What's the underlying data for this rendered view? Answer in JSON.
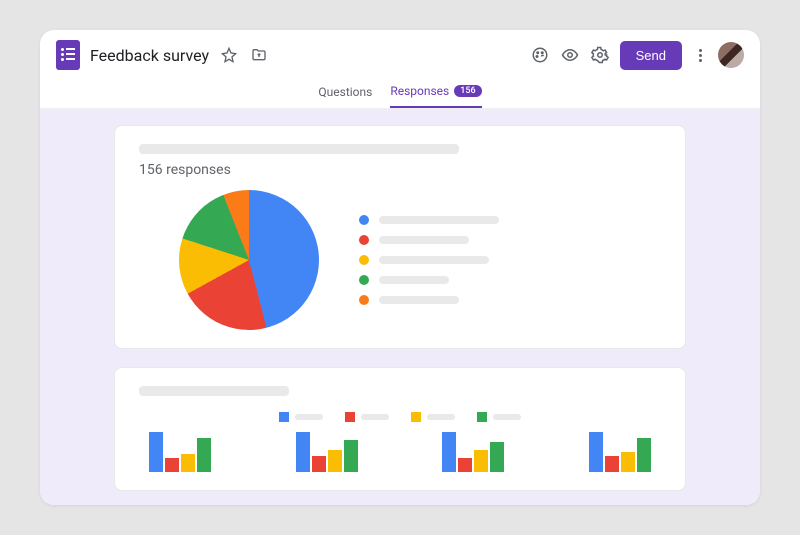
{
  "header": {
    "title": "Feedback survey",
    "send_label": "Send"
  },
  "tabs": {
    "questions": "Questions",
    "responses": "Responses",
    "count_badge": "156"
  },
  "responses": {
    "subtitle": "156 responses",
    "pie": {
      "type": "pie",
      "slices": [
        {
          "color": "#4285f4",
          "pct": 46
        },
        {
          "color": "#ea4335",
          "pct": 21
        },
        {
          "color": "#fbbc04",
          "pct": 13
        },
        {
          "color": "#34a853",
          "pct": 14
        },
        {
          "color": "#fa7b17",
          "pct": 6
        }
      ],
      "legend_bar_widths": [
        120,
        90,
        110,
        70,
        80
      ]
    },
    "bars": {
      "type": "bar",
      "colors": [
        "#4285f4",
        "#ea4335",
        "#fbbc04",
        "#34a853"
      ],
      "legend_bar_width": 28,
      "groups": [
        [
          40,
          14,
          18,
          34
        ],
        [
          40,
          16,
          22,
          32
        ],
        [
          40,
          14,
          22,
          30
        ],
        [
          40,
          16,
          20,
          34
        ]
      ]
    }
  },
  "placeholder_color": "#e9e9e9"
}
